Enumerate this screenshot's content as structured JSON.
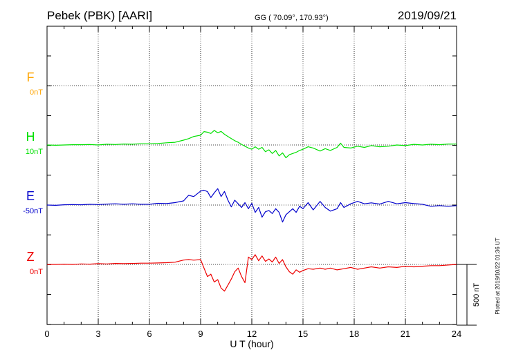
{
  "header": {
    "station": "Pebek (PBK)  [AARI]",
    "coords": "GG ( 70.09°, 170.93°)",
    "date": "2019/09/21"
  },
  "footer": {
    "plotted": "Plotted at 2019/10/22 01:36 UT"
  },
  "colors": {
    "F": "#ffa500",
    "H": "#00e000",
    "E": "#0000cc",
    "Z": "#ee0000"
  },
  "chart_data": {
    "type": "line",
    "xlabel": "U T (hour)",
    "xlim": [
      0,
      24
    ],
    "xticks": [
      "0",
      "3",
      "6",
      "9",
      "12",
      "15",
      "18",
      "21",
      "24"
    ],
    "scale_bar_label": "500 nT",
    "scale_bar_nT": 500,
    "series": [
      {
        "name": "F",
        "baseline_label": "0nT",
        "baseline_nT": 0,
        "x": [],
        "y": []
      },
      {
        "name": "H",
        "baseline_label": "10nT",
        "baseline_nT": 10,
        "x": [
          0,
          0.5,
          1,
          1.5,
          2,
          2.5,
          3,
          3.5,
          4,
          4.5,
          5,
          5.5,
          6,
          6.5,
          7,
          7.5,
          8,
          8.3,
          8.6,
          9,
          9.2,
          9.4,
          9.6,
          9.8,
          10,
          10.2,
          10.4,
          10.6,
          10.8,
          11,
          11.2,
          11.4,
          11.6,
          11.8,
          12,
          12.2,
          12.4,
          12.6,
          12.8,
          13,
          13.2,
          13.4,
          13.6,
          13.8,
          14,
          14.2,
          14.4,
          14.6,
          14.8,
          15,
          15.3,
          15.6,
          16,
          16.3,
          16.6,
          17,
          17.2,
          17.4,
          17.8,
          18.2,
          18.6,
          19,
          19.5,
          20,
          20.5,
          21,
          21.5,
          22,
          22.5,
          23,
          23.5,
          24
        ],
        "y": [
          0,
          -2,
          0,
          2,
          2,
          4,
          0,
          6,
          4,
          8,
          6,
          10,
          10,
          12,
          18,
          22,
          40,
          52,
          70,
          80,
          110,
          105,
          95,
          120,
          100,
          112,
          88,
          70,
          52,
          35,
          22,
          5,
          -10,
          -25,
          -35,
          -15,
          -35,
          -20,
          -55,
          -40,
          -70,
          -45,
          -90,
          -65,
          -105,
          -80,
          -70,
          -60,
          -45,
          -35,
          -15,
          -25,
          -50,
          -30,
          -45,
          -20,
          15,
          -20,
          -25,
          -10,
          -20,
          -5,
          -15,
          -10,
          0,
          -5,
          5,
          0,
          6,
          2,
          8,
          8
        ]
      },
      {
        "name": "E",
        "baseline_label": "-50nT",
        "baseline_nT": -50,
        "x": [
          0,
          0.5,
          1,
          1.5,
          2,
          2.5,
          3,
          3.5,
          4,
          4.5,
          5,
          5.5,
          6,
          6.5,
          7,
          7.5,
          8,
          8.3,
          8.6,
          9,
          9.2,
          9.4,
          9.6,
          9.8,
          10,
          10.2,
          10.4,
          10.6,
          10.8,
          11,
          11.2,
          11.4,
          11.6,
          11.8,
          12,
          12.2,
          12.4,
          12.6,
          12.8,
          13,
          13.2,
          13.4,
          13.6,
          13.8,
          14,
          14.2,
          14.4,
          14.6,
          14.8,
          15,
          15.3,
          15.6,
          16,
          16.3,
          16.6,
          17,
          17.2,
          17.4,
          17.8,
          18.2,
          18.6,
          19,
          19.5,
          20,
          20.5,
          21,
          21.5,
          22,
          22.5,
          23,
          23.5,
          24
        ],
        "y": [
          0,
          -2,
          2,
          4,
          2,
          6,
          4,
          8,
          10,
          6,
          10,
          6,
          6,
          14,
          12,
          20,
          34,
          80,
          70,
          115,
          122,
          110,
          62,
          100,
          135,
          70,
          112,
          40,
          -15,
          40,
          10,
          -20,
          20,
          -30,
          15,
          -60,
          -20,
          -100,
          -55,
          -45,
          -70,
          -30,
          -60,
          -140,
          -80,
          -55,
          -30,
          -60,
          -10,
          -30,
          20,
          -40,
          30,
          -20,
          -50,
          -30,
          20,
          -20,
          10,
          30,
          10,
          18,
          8,
          30,
          10,
          20,
          12,
          6,
          -10,
          -5,
          -10,
          -5
        ]
      },
      {
        "name": "Z",
        "baseline_label": "0nT",
        "baseline_nT": 0,
        "x": [
          0,
          0.5,
          1,
          1.5,
          2,
          2.5,
          3,
          3.5,
          4,
          4.5,
          5,
          5.5,
          6,
          6.5,
          7,
          7.5,
          8,
          8.3,
          8.6,
          9,
          9.2,
          9.4,
          9.6,
          9.8,
          10,
          10.2,
          10.4,
          10.6,
          10.8,
          11,
          11.2,
          11.4,
          11.6,
          11.8,
          12,
          12.2,
          12.4,
          12.6,
          12.8,
          13,
          13.2,
          13.4,
          13.6,
          13.8,
          14,
          14.2,
          14.4,
          14.6,
          14.8,
          15,
          15.3,
          15.6,
          16,
          16.3,
          16.6,
          17,
          17.2,
          17.4,
          17.8,
          18.2,
          18.6,
          19,
          19.5,
          20,
          20.5,
          21,
          21.5,
          22,
          22.5,
          23,
          23.5,
          24
        ],
        "y": [
          0,
          0,
          2,
          0,
          4,
          2,
          6,
          4,
          8,
          6,
          8,
          10,
          10,
          12,
          14,
          18,
          36,
          40,
          35,
          40,
          -30,
          -100,
          -80,
          -145,
          -125,
          -195,
          -220,
          -170,
          -120,
          -60,
          -30,
          -100,
          -150,
          60,
          40,
          80,
          30,
          70,
          25,
          45,
          20,
          60,
          8,
          40,
          -20,
          -60,
          -80,
          -45,
          -65,
          -50,
          -35,
          -40,
          -30,
          -40,
          -30,
          -45,
          -40,
          -35,
          -25,
          -40,
          -30,
          -20,
          -30,
          -20,
          -25,
          -15,
          -20,
          -15,
          -10,
          -10,
          -5,
          0
        ]
      }
    ]
  }
}
